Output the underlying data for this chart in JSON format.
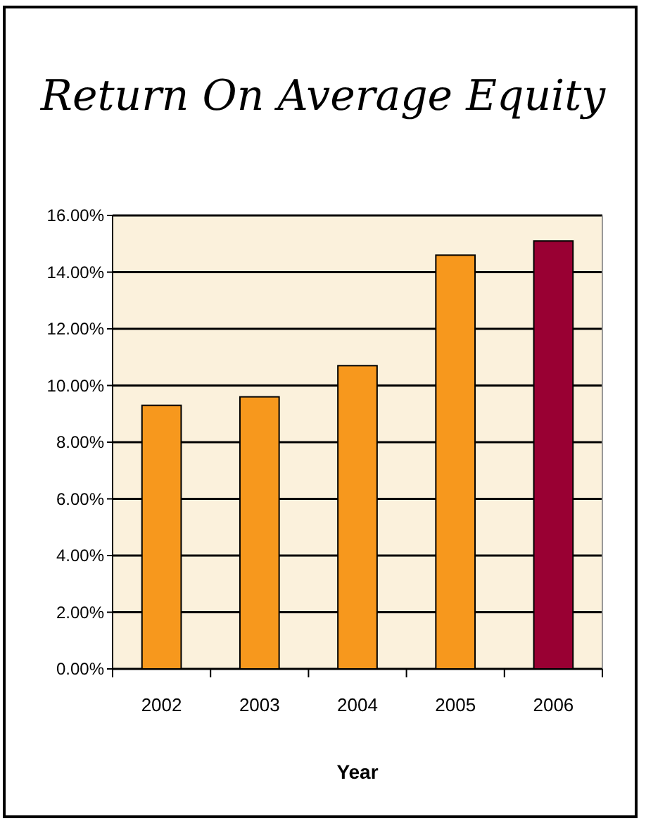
{
  "chart_data": {
    "type": "bar",
    "title": "Return On Average Equity",
    "xlabel": "Year",
    "categories": [
      "2002",
      "2003",
      "2004",
      "2005",
      "2006"
    ],
    "values": [
      9.3,
      9.6,
      10.7,
      14.6,
      15.1
    ],
    "colors": [
      "#f7981d",
      "#f7981d",
      "#f7981d",
      "#f7981d",
      "#990033"
    ],
    "ylim": [
      0,
      16
    ],
    "yticks": [
      {
        "value": 0,
        "label": "0.00%"
      },
      {
        "value": 2,
        "label": "2.00%"
      },
      {
        "value": 4,
        "label": "4.00%"
      },
      {
        "value": 6,
        "label": "6.00%"
      },
      {
        "value": 8,
        "label": "8.00%"
      },
      {
        "value": 10,
        "label": "10.00%"
      },
      {
        "value": 12,
        "label": "12.00%"
      },
      {
        "value": 14,
        "label": "14.00%"
      },
      {
        "value": 16,
        "label": "16.00%"
      }
    ],
    "grid": "y"
  }
}
